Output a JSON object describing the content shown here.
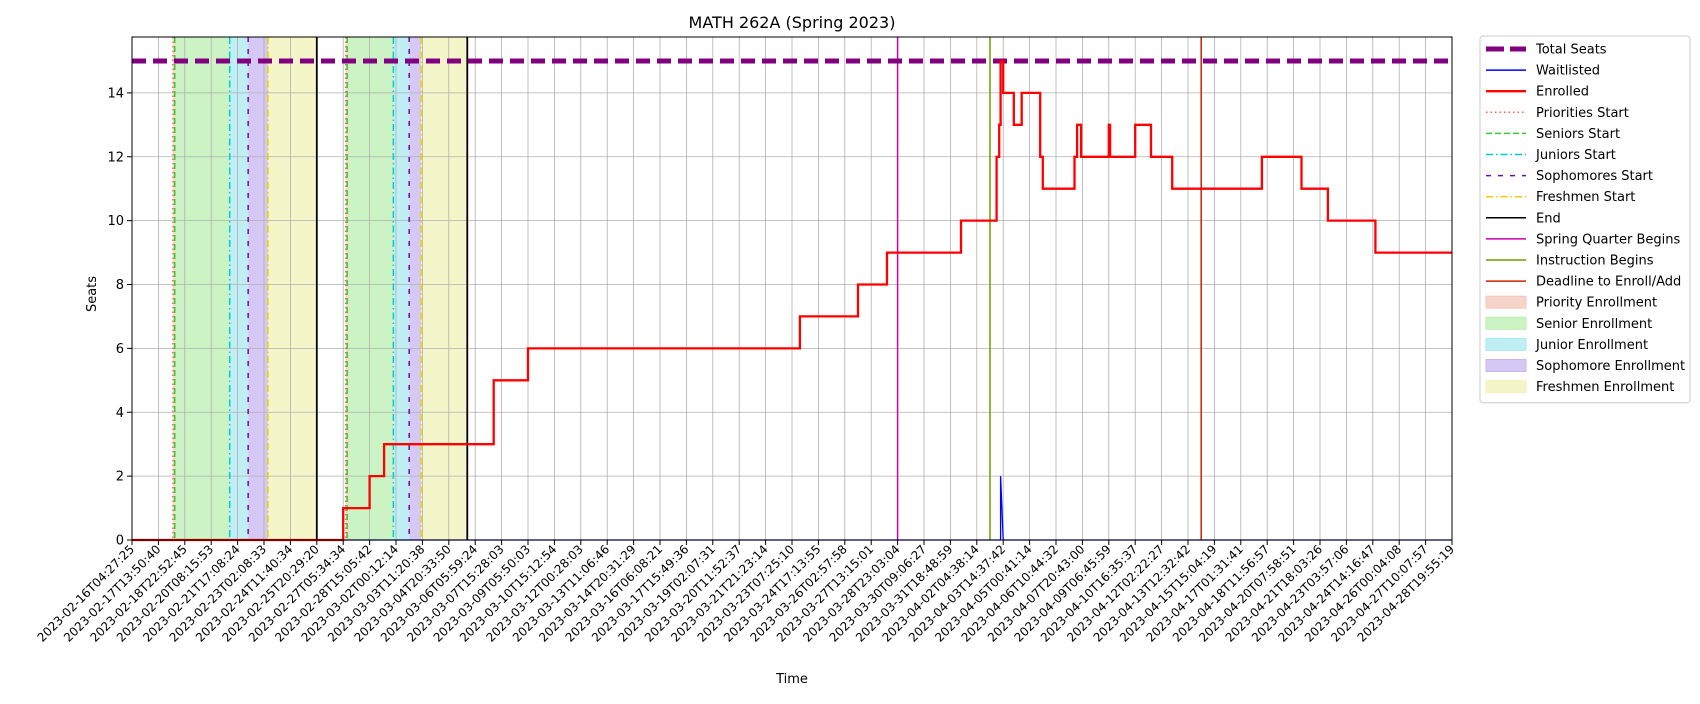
{
  "chart_data": {
    "type": "line",
    "title": "MATH 262A (Spring 2023)",
    "xlabel": "Time",
    "ylabel": "Seats",
    "ylim": [
      0,
      15.75
    ],
    "y_ticks": [
      0,
      2,
      4,
      6,
      8,
      10,
      12,
      14
    ],
    "grid": true,
    "legend_placement": "outside-right",
    "colors": {
      "total": "#800080",
      "waitlisted": "#0000ff",
      "enrolled": "#ff0000",
      "priorities_start": "#ff6347",
      "seniors_start": "#32cd32",
      "juniors_start": "#00ced1",
      "sophomores_start": "#6a0dad",
      "freshmen_start": "#e6d200",
      "end": "#000000",
      "spring_quarter": "#cc00aa",
      "instruction": "#6b9e00",
      "deadline": "#cc2200",
      "priority_fill": "#f4c6b8",
      "senior_fill": "#b9efb0",
      "junior_fill": "#aaeaf0",
      "sophomore_fill": "#c8b6f0",
      "freshmen_fill": "#f2f2b8"
    },
    "x_ticks": [
      "2023-02-16T04:27:25",
      "2023-02-17T13:50:40",
      "2023-02-18T22:52:45",
      "2023-02-20T08:15:53",
      "2023-02-21T17:08:24",
      "2023-02-23T02:08:33",
      "2023-02-24T11:40:34",
      "2023-02-25T20:29:20",
      "2023-02-27T05:34:34",
      "2023-02-28T15:05:42",
      "2023-03-02T00:12:14",
      "2023-03-03T11:20:38",
      "2023-03-04T20:33:50",
      "2023-03-06T05:59:24",
      "2023-03-07T15:28:03",
      "2023-03-09T05:50:03",
      "2023-03-10T15:12:54",
      "2023-03-12T00:28:03",
      "2023-03-13T11:06:46",
      "2023-03-14T20:31:29",
      "2023-03-16T06:08:21",
      "2023-03-17T15:49:36",
      "2023-03-19T02:07:31",
      "2023-03-20T11:52:37",
      "2023-03-21T21:23:14",
      "2023-03-23T07:25:10",
      "2023-03-24T17:13:55",
      "2023-03-26T02:57:58",
      "2023-03-27T13:15:01",
      "2023-03-28T23:03:04",
      "2023-03-30T09:06:27",
      "2023-03-31T18:48:59",
      "2023-04-02T04:38:14",
      "2023-04-03T14:37:42",
      "2023-04-05T00:41:14",
      "2023-04-06T10:44:32",
      "2023-04-07T20:43:00",
      "2023-04-09T06:45:59",
      "2023-04-10T16:35:37",
      "2023-04-12T02:22:27",
      "2023-04-13T12:32:42",
      "2023-04-15T15:04:19",
      "2023-04-17T01:31:41",
      "2023-04-18T11:56:57",
      "2023-04-20T07:58:51",
      "2023-04-21T18:03:26",
      "2023-04-23T03:57:06",
      "2023-04-24T14:16:47",
      "2023-04-26T00:04:08",
      "2023-04-27T10:07:57",
      "2023-04-28T19:55:19"
    ],
    "total_seats": 15,
    "enrolled": [
      [
        0,
        0
      ],
      [
        8,
        0
      ],
      [
        8,
        1
      ],
      [
        9,
        1
      ],
      [
        9,
        2
      ],
      [
        9.55,
        2
      ],
      [
        9.55,
        3
      ],
      [
        13.7,
        3
      ],
      [
        13.7,
        5
      ],
      [
        15,
        5
      ],
      [
        15,
        6
      ],
      [
        25.3,
        6
      ],
      [
        25.3,
        7
      ],
      [
        27.5,
        7
      ],
      [
        27.5,
        8
      ],
      [
        28.6,
        8
      ],
      [
        28.6,
        9
      ],
      [
        31.4,
        9
      ],
      [
        31.4,
        10
      ],
      [
        32.75,
        10
      ],
      [
        32.75,
        12
      ],
      [
        32.85,
        12
      ],
      [
        32.85,
        13
      ],
      [
        32.9,
        13
      ],
      [
        32.9,
        15
      ],
      [
        33,
        15
      ],
      [
        33,
        14
      ],
      [
        33.4,
        14
      ],
      [
        33.4,
        13
      ],
      [
        33.7,
        13
      ],
      [
        33.7,
        14
      ],
      [
        34.4,
        14
      ],
      [
        34.4,
        12
      ],
      [
        34.5,
        12
      ],
      [
        34.5,
        11
      ],
      [
        35.7,
        11
      ],
      [
        35.7,
        12
      ],
      [
        35.8,
        12
      ],
      [
        35.8,
        13
      ],
      [
        35.95,
        13
      ],
      [
        35.95,
        12
      ],
      [
        37,
        12
      ],
      [
        37,
        13
      ],
      [
        37.05,
        13
      ],
      [
        37.05,
        12
      ],
      [
        38,
        12
      ],
      [
        38,
        13
      ],
      [
        38.6,
        13
      ],
      [
        38.6,
        12
      ],
      [
        39.4,
        12
      ],
      [
        39.4,
        11
      ],
      [
        42.8,
        11
      ],
      [
        42.8,
        12
      ],
      [
        44.3,
        12
      ],
      [
        44.3,
        11
      ],
      [
        45.3,
        11
      ],
      [
        45.3,
        10
      ],
      [
        47.1,
        10
      ],
      [
        47.1,
        9
      ],
      [
        50,
        9
      ]
    ],
    "waitlisted": [
      [
        0,
        0
      ],
      [
        32.9,
        0
      ],
      [
        32.9,
        2
      ],
      [
        33,
        0
      ],
      [
        50,
        0
      ]
    ],
    "periods": [
      {
        "name": "Priority Enrollment",
        "start": 1.55,
        "end": 1.65,
        "fill": "priority_fill"
      },
      {
        "name": "Senior Enrollment",
        "start": 1.65,
        "end": 3.7,
        "fill": "senior_fill"
      },
      {
        "name": "Junior Enrollment",
        "start": 3.7,
        "end": 4.4,
        "fill": "junior_fill"
      },
      {
        "name": "Sophomore Enrollment",
        "start": 4.4,
        "end": 5.15,
        "fill": "sophomore_fill"
      },
      {
        "name": "Freshmen Enrollment",
        "start": 5.15,
        "end": 7.0,
        "fill": "freshmen_fill"
      },
      {
        "name": "Priority Enrollment",
        "start": 8.1,
        "end": 8.2,
        "fill": "priority_fill"
      },
      {
        "name": "Senior Enrollment",
        "start": 8.2,
        "end": 9.9,
        "fill": "senior_fill"
      },
      {
        "name": "Junior Enrollment",
        "start": 9.9,
        "end": 10.5,
        "fill": "junior_fill"
      },
      {
        "name": "Sophomore Enrollment",
        "start": 10.5,
        "end": 10.95,
        "fill": "sophomore_fill"
      },
      {
        "name": "Freshmen Enrollment",
        "start": 10.95,
        "end": 12.7,
        "fill": "freshmen_fill"
      }
    ],
    "vlines": [
      {
        "x": 1.55,
        "kind": "priorities_start"
      },
      {
        "x": 1.62,
        "kind": "seniors_start"
      },
      {
        "x": 3.7,
        "kind": "juniors_start"
      },
      {
        "x": 4.4,
        "kind": "sophomores_start"
      },
      {
        "x": 5.15,
        "kind": "freshmen_start"
      },
      {
        "x": 7.0,
        "kind": "end"
      },
      {
        "x": 8.1,
        "kind": "priorities_start"
      },
      {
        "x": 8.15,
        "kind": "seniors_start"
      },
      {
        "x": 9.9,
        "kind": "juniors_start"
      },
      {
        "x": 10.5,
        "kind": "sophomores_start"
      },
      {
        "x": 10.95,
        "kind": "freshmen_start"
      },
      {
        "x": 12.7,
        "kind": "end"
      },
      {
        "x": 29.0,
        "kind": "spring_quarter"
      },
      {
        "x": 32.5,
        "kind": "instruction"
      },
      {
        "x": 40.5,
        "kind": "deadline"
      }
    ],
    "legend": [
      {
        "label": "Total Seats",
        "kind": "total",
        "style": "thickdash"
      },
      {
        "label": "Waitlisted",
        "kind": "waitlisted",
        "style": "line"
      },
      {
        "label": "Enrolled",
        "kind": "enrolled",
        "style": "thick"
      },
      {
        "label": "Priorities Start",
        "kind": "priorities_start",
        "style": "dotted"
      },
      {
        "label": "Seniors Start",
        "kind": "seniors_start",
        "style": "dashed"
      },
      {
        "label": "Juniors Start",
        "kind": "juniors_start",
        "style": "dashdot"
      },
      {
        "label": "Sophomores Start",
        "kind": "sophomores_start",
        "style": "loosedash"
      },
      {
        "label": "Freshmen Start",
        "kind": "freshmen_start",
        "style": "dashdot"
      },
      {
        "label": "End",
        "kind": "end",
        "style": "line"
      },
      {
        "label": "Spring Quarter Begins",
        "kind": "spring_quarter",
        "style": "line"
      },
      {
        "label": "Instruction Begins",
        "kind": "instruction",
        "style": "line"
      },
      {
        "label": "Deadline to Enroll/Add",
        "kind": "deadline",
        "style": "line"
      },
      {
        "label": "Priority Enrollment",
        "kind": "priority_fill",
        "style": "patch"
      },
      {
        "label": "Senior Enrollment",
        "kind": "senior_fill",
        "style": "patch"
      },
      {
        "label": "Junior Enrollment",
        "kind": "junior_fill",
        "style": "patch"
      },
      {
        "label": "Sophomore Enrollment",
        "kind": "sophomore_fill",
        "style": "patch"
      },
      {
        "label": "Freshmen Enrollment",
        "kind": "freshmen_fill",
        "style": "patch"
      }
    ]
  }
}
